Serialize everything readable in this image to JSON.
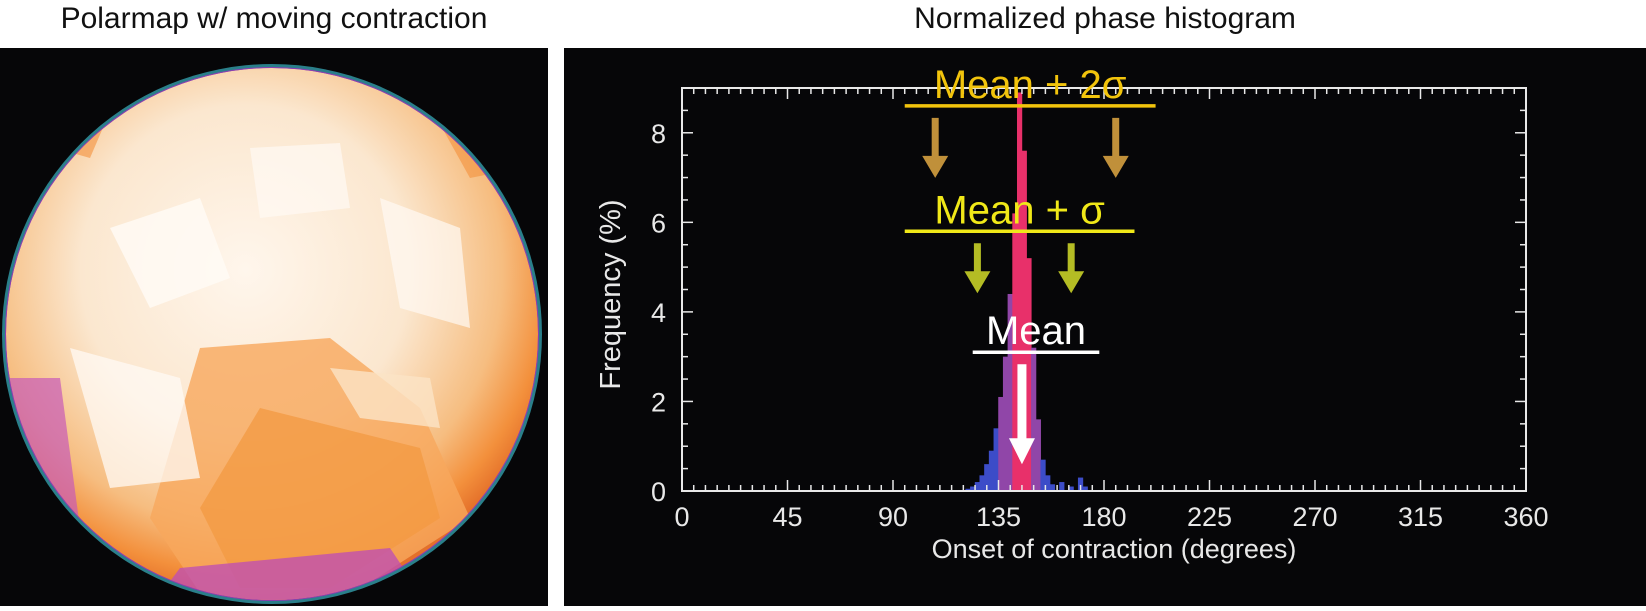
{
  "left_panel": {
    "title": "Polarmap w/ moving contraction"
  },
  "right_panel": {
    "title": "Normalized phase histogram"
  },
  "colors": {
    "background": "#060608",
    "axis": "#e8e8e8",
    "annotation_2sigma": "#f2c40c",
    "arrow_2sigma": "#c0903a",
    "annotation_sigma": "#f0e818",
    "arrow_sigma": "#b4bc24",
    "annotation_mean": "#ffffff",
    "histogram_peak": "#e8306a",
    "histogram_mid": "#9046a8",
    "histogram_base": "#3c4cc8"
  },
  "chart_data": {
    "type": "bar",
    "title": "Normalized phase histogram",
    "xlabel": "Onset of contraction (degrees)",
    "ylabel": "Frequency (%)",
    "xlim": [
      0,
      360
    ],
    "ylim": [
      0,
      9
    ],
    "x_ticks": [
      0,
      45,
      90,
      135,
      180,
      225,
      270,
      315,
      360
    ],
    "x_tick_labels": [
      "0",
      "45",
      "90",
      "135",
      "180",
      "225",
      "270",
      "315",
      "360"
    ],
    "y_ticks": [
      0,
      2,
      4,
      6,
      8
    ],
    "y_tick_labels": [
      "0",
      "2",
      "4",
      "6",
      "8"
    ],
    "grid": false,
    "bin_width": 1.8,
    "bins": [
      {
        "x": 122,
        "y": 0.05
      },
      {
        "x": 124,
        "y": 0.1
      },
      {
        "x": 126,
        "y": 0.2
      },
      {
        "x": 128,
        "y": 0.35
      },
      {
        "x": 130,
        "y": 0.6
      },
      {
        "x": 132,
        "y": 0.9
      },
      {
        "x": 134,
        "y": 1.4
      },
      {
        "x": 136,
        "y": 2.1
      },
      {
        "x": 138,
        "y": 3.0
      },
      {
        "x": 140,
        "y": 4.4
      },
      {
        "x": 142,
        "y": 6.2
      },
      {
        "x": 144,
        "y": 8.9
      },
      {
        "x": 146,
        "y": 7.6
      },
      {
        "x": 148,
        "y": 5.2
      },
      {
        "x": 150,
        "y": 3.2
      },
      {
        "x": 152,
        "y": 1.6
      },
      {
        "x": 154,
        "y": 0.7
      },
      {
        "x": 156,
        "y": 0.35
      },
      {
        "x": 158,
        "y": 0.15
      },
      {
        "x": 162,
        "y": 0.2
      },
      {
        "x": 166,
        "y": 0.1
      },
      {
        "x": 170,
        "y": 0.3
      },
      {
        "x": 172,
        "y": 0.1
      }
    ],
    "annotations": [
      {
        "label": "Mean + 2σ",
        "arrow_x": [
          108,
          185
        ],
        "line_x": [
          95,
          202
        ],
        "y": 8.6
      },
      {
        "label": "Mean + σ",
        "arrow_x": [
          126,
          166
        ],
        "line_x": [
          95,
          193
        ],
        "y": 5.8
      },
      {
        "label": "Mean",
        "arrow_x": [
          145
        ],
        "line_x": [
          124,
          178
        ],
        "y": 3.1
      }
    ],
    "mean": 145
  }
}
